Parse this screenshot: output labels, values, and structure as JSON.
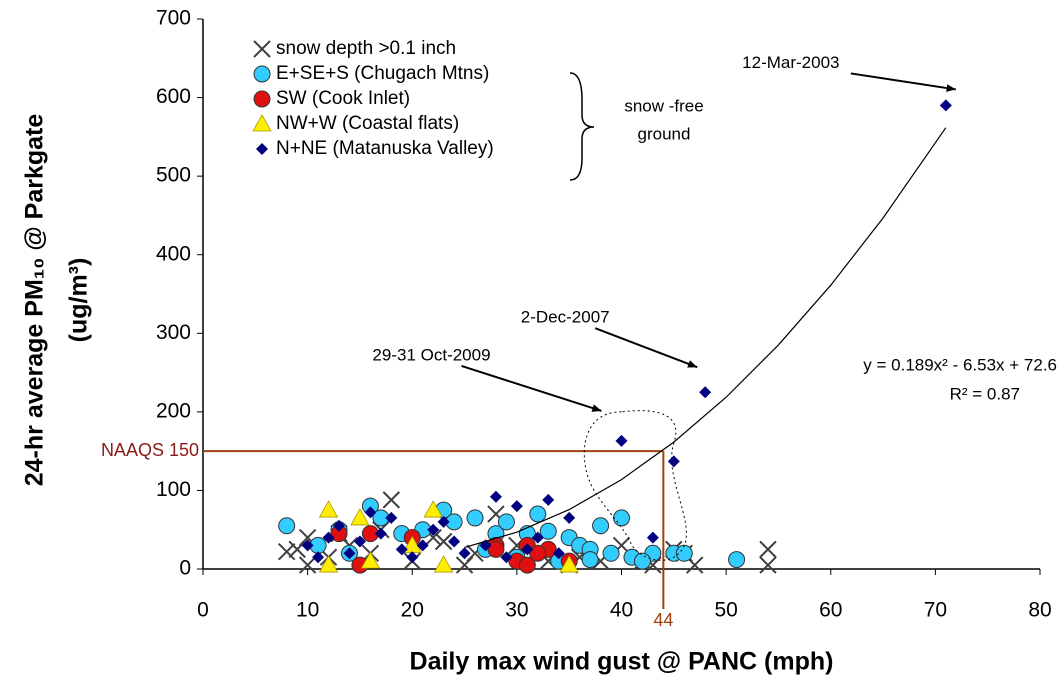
{
  "chart_data": {
    "type": "scatter",
    "x_label": "Daily max wind gust @ PANC (mph)",
    "y_label": [
      "24-hr average PM₁₀ @ Parkgate",
      "(ug/m³)"
    ],
    "xlim": [
      0,
      80
    ],
    "xticks": [
      0,
      10,
      20,
      30,
      40,
      50,
      60,
      70,
      80
    ],
    "ylim": [
      0,
      700
    ],
    "yticks": [
      0,
      100,
      200,
      300,
      400,
      500,
      600,
      700
    ],
    "grid": false,
    "legend": "upper left",
    "series": [
      {
        "name": "snow depth >0.1 inch",
        "marker": "x",
        "color": "#404040",
        "x": [
          8,
          9,
          10,
          12,
          14,
          16,
          18,
          20,
          22,
          25,
          28,
          30,
          33,
          35,
          38,
          40,
          43,
          45,
          47,
          54,
          54,
          10,
          13,
          17,
          23,
          26,
          36,
          42,
          46
        ],
        "y": [
          22,
          25,
          5,
          15,
          30,
          20,
          88,
          10,
          40,
          5,
          70,
          30,
          10,
          5,
          10,
          30,
          5,
          25,
          5,
          25,
          5,
          40,
          45,
          50,
          35,
          20,
          15,
          10,
          20
        ]
      },
      {
        "name": "E+SE+S (Chugach Mtns)",
        "marker": "circle",
        "color": "#33ccff",
        "x": [
          8,
          11,
          13,
          16,
          17,
          19,
          21,
          23,
          24,
          26,
          28,
          29,
          31,
          32,
          33,
          35,
          36,
          37,
          38,
          39,
          40,
          41,
          43,
          45,
          46,
          51,
          30,
          34,
          14,
          27,
          37,
          42
        ],
        "y": [
          55,
          30,
          50,
          80,
          65,
          45,
          50,
          75,
          60,
          65,
          45,
          60,
          45,
          70,
          48,
          40,
          30,
          25,
          55,
          20,
          65,
          15,
          20,
          20,
          20,
          12,
          15,
          10,
          20,
          25,
          12,
          10
        ]
      },
      {
        "name": "SW (Cook Inlet)",
        "marker": "circle",
        "color": "#e01010",
        "x": [
          13,
          16,
          20,
          28,
          28,
          30,
          31,
          31,
          33,
          32,
          35,
          15
        ],
        "y": [
          45,
          45,
          40,
          30,
          25,
          10,
          5,
          30,
          25,
          20,
          10,
          5
        ]
      },
      {
        "name": "NW+W (Coastal flats)",
        "marker": "triangle",
        "color": "#ffee00",
        "x": [
          12,
          15,
          22,
          20,
          12,
          23,
          16,
          35
        ],
        "y": [
          75,
          65,
          75,
          30,
          5,
          5,
          10,
          5
        ]
      },
      {
        "name": "N+NE (Matanuska Valley)",
        "marker": "diamond",
        "color": "#000080",
        "x": [
          71,
          48,
          45,
          40,
          43,
          28,
          30,
          33,
          35,
          18,
          16,
          10,
          12,
          14,
          15,
          17,
          19,
          21,
          22,
          24,
          25,
          27,
          29,
          31,
          32,
          34,
          11,
          13,
          20,
          23
        ],
        "y": [
          590,
          225,
          137,
          163,
          40,
          92,
          80,
          88,
          65,
          65,
          72,
          30,
          40,
          20,
          35,
          45,
          25,
          30,
          50,
          35,
          20,
          30,
          15,
          25,
          40,
          20,
          15,
          55,
          15,
          60
        ]
      }
    ],
    "trendline": {
      "x": [
        25,
        30,
        35,
        40,
        45,
        50,
        55,
        60,
        65,
        71
      ],
      "y": [
        27.5,
        46.8,
        75.6,
        113.8,
        161.5,
        218.6,
        285.2,
        361.2,
        446.7,
        561.7
      ]
    },
    "equation": "y = 0.189x² - 6.53x + 72.6",
    "r_squared": "R² = 0.87",
    "bracket_label": [
      "snow -free",
      "ground"
    ],
    "naaqs": {
      "value": 150,
      "label": "NAAQS  150"
    },
    "threshold_x": {
      "value": 44,
      "label": "44"
    },
    "annotations": [
      {
        "text": "12-Mar-2003",
        "x": 71,
        "y": 590
      },
      {
        "text": "2-Dec-2007",
        "x": 48,
        "y": 225
      },
      {
        "text": "29-31 Oct-2009",
        "x": 40,
        "y": 163
      }
    ]
  }
}
